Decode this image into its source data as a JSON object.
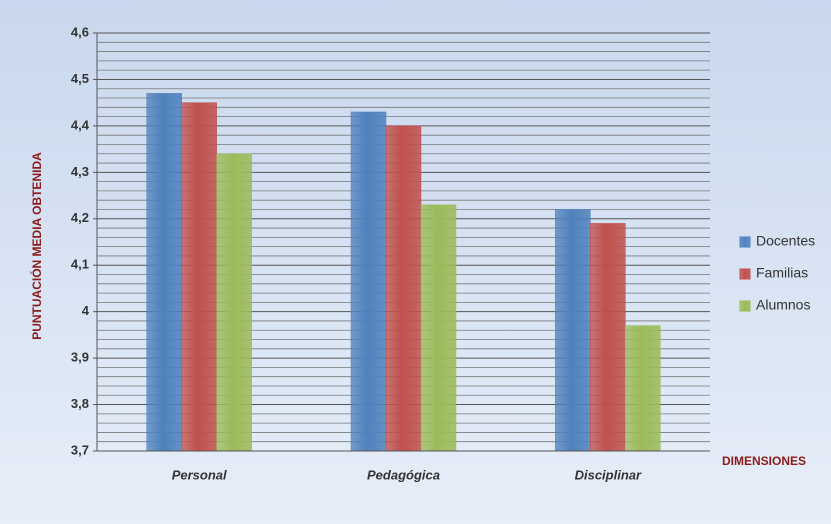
{
  "chart_data": {
    "type": "bar",
    "categories": [
      "Personal",
      "Pedagógica",
      "Disciplinar"
    ],
    "series": [
      {
        "name": "Docentes",
        "color": "#4f81bd",
        "values": [
          4.47,
          4.43,
          4.22
        ]
      },
      {
        "name": "Familias",
        "color": "#c0504d",
        "values": [
          4.45,
          4.4,
          4.19
        ]
      },
      {
        "name": "Alumnos",
        "color": "#9bbb59",
        "values": [
          4.34,
          4.23,
          3.97
        ]
      }
    ],
    "y_label": "PUNTUACIÓN  MEDIA OBTENIDA",
    "x_label": "DIMENSIONES",
    "ylim": [
      3.7,
      4.6
    ],
    "yticks": [
      {
        "value": 3.7,
        "label": "3,7"
      },
      {
        "value": 3.8,
        "label": "3,8"
      },
      {
        "value": 3.9,
        "label": "3,9"
      },
      4,
      {
        "value": 4.1,
        "label": "4,1"
      },
      {
        "value": 4.2,
        "label": "4,2"
      },
      {
        "value": 4.3,
        "label": "4,3"
      },
      {
        "value": 4.4,
        "label": "4,4"
      },
      {
        "value": 4.5,
        "label": "4,5"
      },
      {
        "value": 4.6,
        "label": "4,6"
      }
    ],
    "grid": true,
    "minor_grid_divisions": 5,
    "legend": "right"
  }
}
